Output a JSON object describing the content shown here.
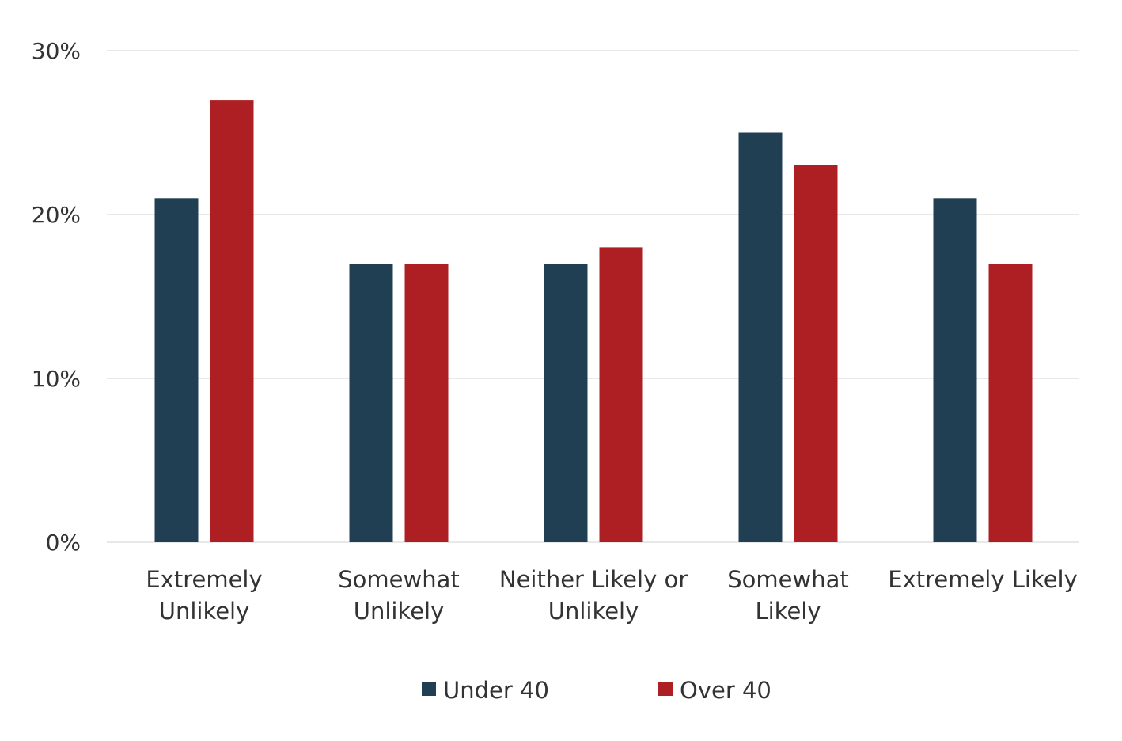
{
  "chart_data": {
    "type": "bar",
    "title": "",
    "xlabel": "",
    "ylabel": "",
    "categories": [
      [
        "Extremely",
        "Unlikely"
      ],
      [
        "Somewhat",
        "Unlikely"
      ],
      [
        "Neither Likely or",
        "Unlikely"
      ],
      [
        "Somewhat",
        "Likely"
      ],
      [
        "Extremely Likely"
      ]
    ],
    "series": [
      {
        "name": "Under 40",
        "color": "#213f53",
        "values": [
          21,
          17,
          17,
          25,
          21
        ]
      },
      {
        "name": "Over 40",
        "color": "#ae1f24",
        "values": [
          27,
          17,
          18,
          23,
          17
        ]
      }
    ],
    "ylim": [
      0,
      30
    ],
    "yticks": [
      0,
      10,
      20,
      30
    ],
    "ytick_labels": [
      "0%",
      "10%",
      "20%",
      "30%"
    ],
    "grid": true,
    "legend": "bottom-center"
  }
}
